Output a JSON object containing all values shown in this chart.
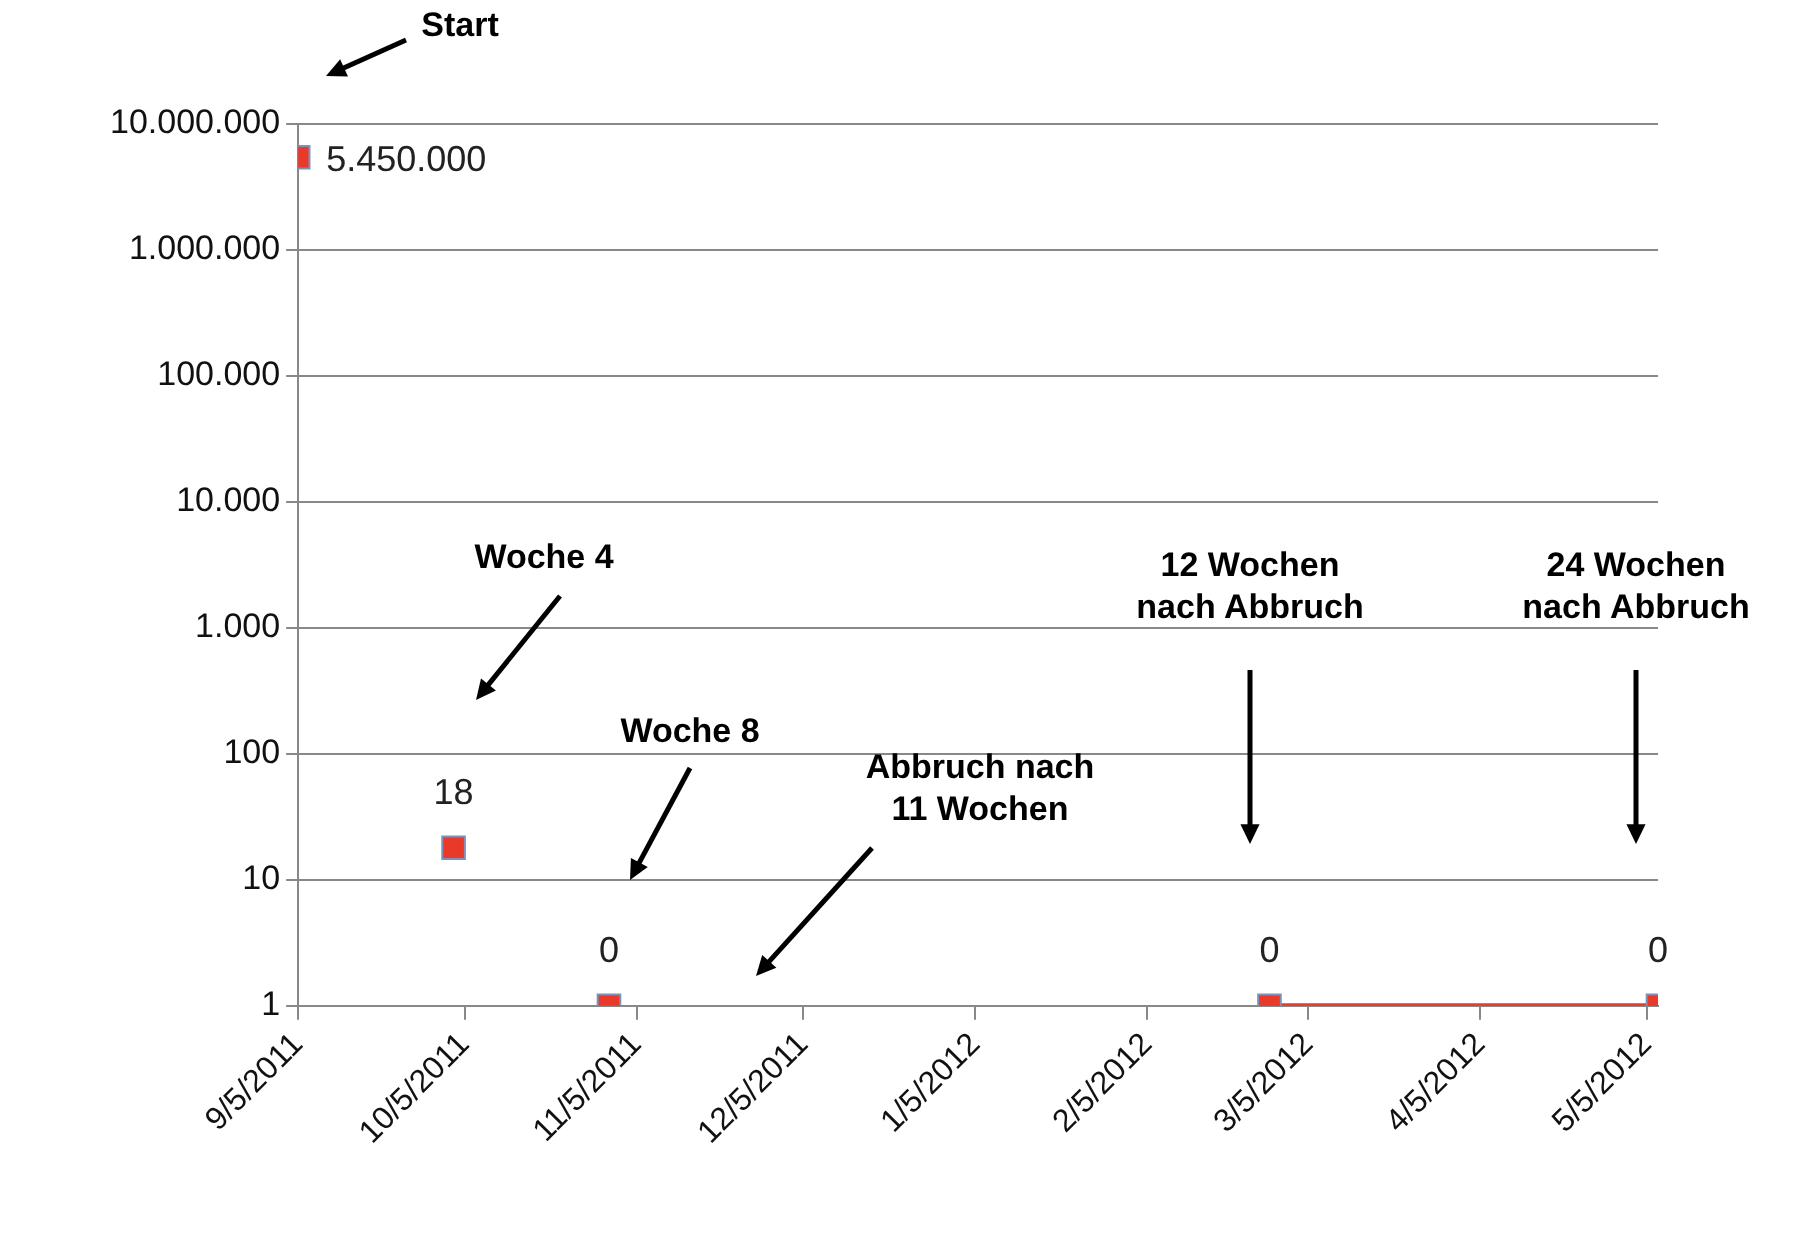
{
  "chart_data": {
    "type": "scatter",
    "marker": "square",
    "log": "y",
    "grid": "y",
    "xlim": [
      "2011-09-05",
      "2012-05-07"
    ],
    "xticks": [
      {
        "value": "2011-09-05",
        "label": "9/5/2011"
      },
      {
        "value": "2011-10-05",
        "label": "10/5/2011"
      },
      {
        "value": "2011-11-05",
        "label": "11/5/2011"
      },
      {
        "value": "2011-12-05",
        "label": "12/5/2011"
      },
      {
        "value": "2012-01-05",
        "label": "1/5/2012"
      },
      {
        "value": "2012-02-05",
        "label": "2/5/2012"
      },
      {
        "value": "2012-03-05",
        "label": "3/5/2012"
      },
      {
        "value": "2012-04-05",
        "label": "4/5/2012"
      },
      {
        "value": "2012-05-05",
        "label": "5/5/2012"
      }
    ],
    "ylim": [
      1,
      10000000
    ],
    "yticks": [
      {
        "value": 1,
        "label": "1"
      },
      {
        "value": 10,
        "label": "10"
      },
      {
        "value": 100,
        "label": "100"
      },
      {
        "value": 1000,
        "label": "1.000"
      },
      {
        "value": 10000,
        "label": "10.000"
      },
      {
        "value": 100000,
        "label": "100.000"
      },
      {
        "value": 1000000,
        "label": "1.000.000"
      },
      {
        "value": 10000000,
        "label": "10.000.000"
      }
    ],
    "series": [
      {
        "color": "#e8392a",
        "x": [
          "2011-09-05",
          "2011-10-03",
          "2011-10-31",
          "2012-02-27",
          "2012-05-07"
        ],
        "values": [
          5450000,
          18,
          1,
          1,
          1
        ],
        "value_labels": [
          "5.450.000",
          "18",
          null,
          null,
          null
        ]
      },
      {
        "type": "line",
        "marker": "none",
        "color": "#e8392a",
        "x": [
          "2012-02-27",
          "2012-05-07"
        ],
        "values": [
          1,
          1
        ]
      }
    ],
    "annotations": [
      "Start",
      "Woche 4",
      "Woche 8",
      "Abbruch nach\n11 Wochen",
      "12 Wochen\nnach Abbruch",
      "24 Wochen\nnach Abbruch",
      {
        "text": "0",
        "x": "2011-10-31",
        "y": 1
      },
      {
        "text": "0",
        "x": "2012-02-27",
        "y": 1
      },
      {
        "text": "0",
        "x": "2012-05-07",
        "y": 1
      }
    ]
  }
}
